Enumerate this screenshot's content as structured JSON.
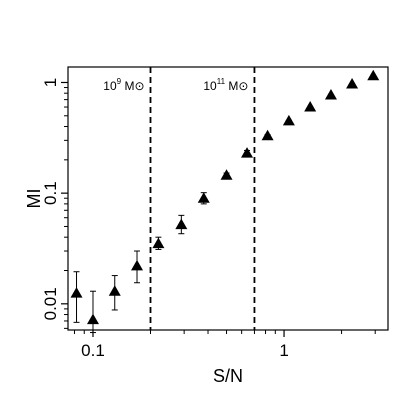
{
  "chart_data": {
    "type": "scatter",
    "xlabel": "S/N",
    "ylabel": "MI",
    "xscale": "log",
    "yscale": "log",
    "xlim": [
      0.074,
      3.5
    ],
    "ylim": [
      0.0058,
      1.38
    ],
    "xticks": [
      {
        "value": 0.1,
        "label": "0.1"
      },
      {
        "value": 1,
        "label": "1"
      }
    ],
    "yticks": [
      {
        "value": 0.01,
        "label": "0.01"
      },
      {
        "value": 0.1,
        "label": "0.1"
      },
      {
        "value": 1,
        "label": "1"
      }
    ],
    "marker": "filled-triangle",
    "color": "#000000",
    "vlines": [
      {
        "x": 0.2,
        "style": "dashed",
        "label_base": "10",
        "label_exp": "9",
        "label_unit": " M⊙"
      },
      {
        "x": 0.7,
        "style": "dashed",
        "label_base": "10",
        "label_exp": "11",
        "label_unit": " M⊙"
      }
    ],
    "points": [
      {
        "x": 0.082,
        "y": 0.0125,
        "lo": 0.0068,
        "hi": 0.0195
      },
      {
        "x": 0.1,
        "y": 0.0072,
        "lo": 0.0055,
        "hi": 0.013
      },
      {
        "x": 0.13,
        "y": 0.013,
        "lo": 0.0088,
        "hi": 0.018
      },
      {
        "x": 0.17,
        "y": 0.022,
        "lo": 0.0155,
        "hi": 0.03
      },
      {
        "x": 0.22,
        "y": 0.035,
        "lo": 0.031,
        "hi": 0.04
      },
      {
        "x": 0.29,
        "y": 0.052,
        "lo": 0.043,
        "hi": 0.063
      },
      {
        "x": 0.38,
        "y": 0.09,
        "lo": 0.08,
        "hi": 0.101
      },
      {
        "x": 0.5,
        "y": 0.145,
        "lo": 0.138,
        "hi": 0.152
      },
      {
        "x": 0.64,
        "y": 0.23,
        "lo": 0.217,
        "hi": 0.243
      },
      {
        "x": 0.82,
        "y": 0.33,
        "lo": 0.322,
        "hi": 0.338
      },
      {
        "x": 1.06,
        "y": 0.45,
        "lo": 0.445,
        "hi": 0.455
      },
      {
        "x": 1.37,
        "y": 0.6,
        "lo": 0.6,
        "hi": 0.6
      },
      {
        "x": 1.76,
        "y": 0.77,
        "lo": 0.77,
        "hi": 0.77
      },
      {
        "x": 2.27,
        "y": 0.97,
        "lo": 0.97,
        "hi": 0.97
      },
      {
        "x": 2.93,
        "y": 1.15,
        "lo": 1.15,
        "hi": 1.15
      }
    ]
  }
}
